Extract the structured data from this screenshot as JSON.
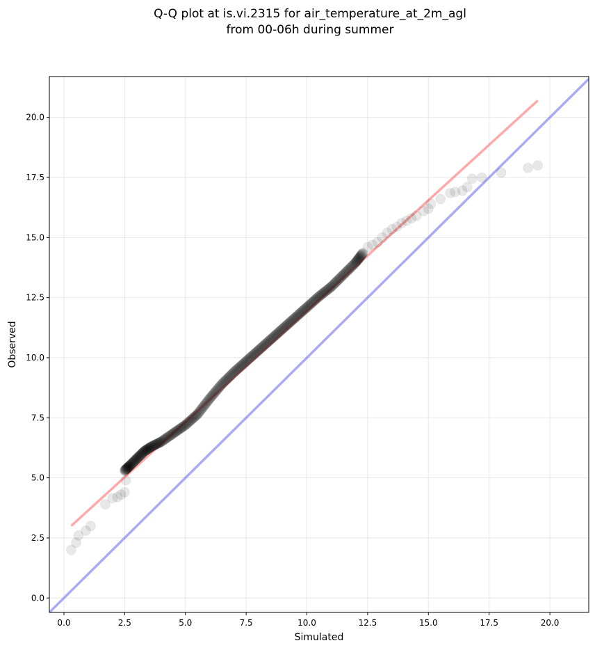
{
  "chart_data": {
    "type": "scatter",
    "title": "Q-Q plot at is.vi.2315 for air_temperature_at_2m_agl",
    "subtitle": "from 00-06h during summer",
    "xlabel": "Simulated",
    "ylabel": "Observed",
    "xlim": [
      -0.6,
      21.6
    ],
    "ylim": [
      -0.6,
      21.7
    ],
    "xticks": [
      0.0,
      2.5,
      5.0,
      7.5,
      10.0,
      12.5,
      15.0,
      17.5,
      20.0
    ],
    "xtick_labels": [
      "0.0",
      "2.5",
      "5.0",
      "7.5",
      "10.0",
      "12.5",
      "15.0",
      "17.5",
      "20.0"
    ],
    "yticks": [
      0.0,
      2.5,
      5.0,
      7.5,
      10.0,
      12.5,
      15.0,
      17.5,
      20.0
    ],
    "ytick_labels": [
      "0.0",
      "2.5",
      "5.0",
      "7.5",
      "10.0",
      "12.5",
      "15.0",
      "17.5",
      "20.0"
    ],
    "grid": true,
    "colors": {
      "points": "#000000",
      "fit_line": "#ff6666",
      "identity_line": "#6666ee"
    },
    "fit_line": {
      "x": [
        0.3,
        19.5
      ],
      "y": [
        3.0,
        20.7
      ]
    },
    "identity_line": {
      "x": [
        -0.6,
        21.6
      ],
      "y": [
        -0.6,
        21.6
      ]
    },
    "dense_quantiles": {
      "x": [
        2.5,
        2.7,
        3.0,
        3.3,
        3.6,
        4.0,
        4.5,
        5.0,
        5.5,
        6.0,
        6.5,
        7.0,
        7.5,
        8.0,
        8.5,
        9.0,
        9.5,
        10.0,
        10.5,
        11.0,
        11.5,
        12.0,
        12.3
      ],
      "y": [
        5.3,
        5.5,
        5.8,
        6.1,
        6.3,
        6.5,
        6.85,
        7.2,
        7.65,
        8.3,
        8.9,
        9.4,
        9.85,
        10.3,
        10.75,
        11.2,
        11.65,
        12.1,
        12.55,
        12.95,
        13.45,
        13.95,
        14.35
      ],
      "count": 320
    },
    "sparse_points": {
      "x": [
        0.3,
        0.5,
        0.6,
        0.9,
        1.1,
        1.7,
        2.0,
        2.2,
        2.35,
        2.5,
        2.55,
        12.5,
        12.7,
        12.9,
        13.1,
        13.3,
        13.5,
        13.7,
        13.9,
        14.1,
        14.3,
        14.5,
        14.8,
        15.0,
        15.1,
        15.5,
        15.9,
        16.1,
        16.4,
        16.6,
        16.8,
        17.2,
        18.0,
        19.1,
        19.5
      ],
      "y": [
        2.0,
        2.3,
        2.6,
        2.8,
        3.0,
        3.9,
        4.15,
        4.2,
        4.3,
        4.4,
        4.9,
        14.6,
        14.7,
        14.8,
        15.0,
        15.2,
        15.35,
        15.45,
        15.6,
        15.7,
        15.8,
        15.9,
        16.1,
        16.2,
        16.4,
        16.6,
        16.85,
        16.9,
        16.95,
        17.1,
        17.45,
        17.5,
        17.7,
        17.9,
        18.0
      ]
    }
  }
}
